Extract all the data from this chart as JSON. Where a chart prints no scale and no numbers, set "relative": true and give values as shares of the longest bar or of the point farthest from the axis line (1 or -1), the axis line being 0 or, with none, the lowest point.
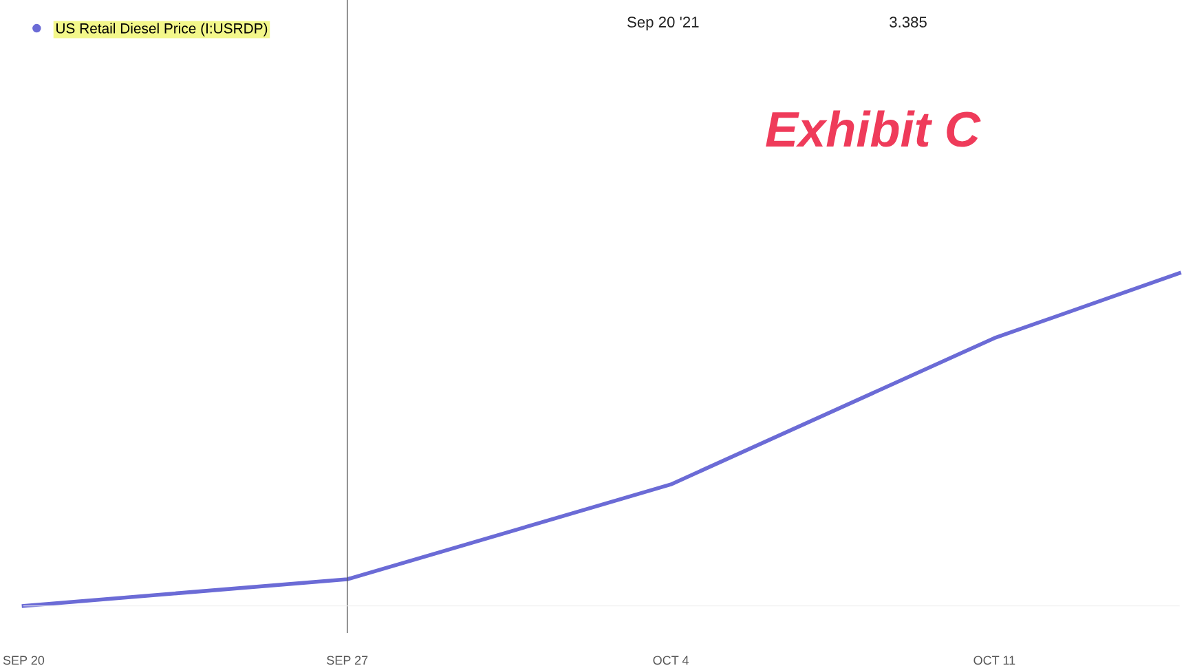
{
  "chart_data": {
    "type": "line",
    "relative": true,
    "x": [
      "2021-09-20",
      "2021-09-27",
      "2021-10-04",
      "2021-10-11",
      "2021-10-15"
    ],
    "series": [
      {
        "name": "US Retail Diesel Price (I:USRDP)",
        "color": "#6b6bd6",
        "values": [
          0,
          0.08,
          0.365,
          0.805,
          1
        ]
      }
    ],
    "xlim": [
      "2021-09-20",
      "2021-10-15"
    ],
    "xticks": [
      {
        "value": "2021-09-20",
        "label": "SEP 20"
      },
      {
        "value": "2021-09-27",
        "label": "SEP 27"
      },
      {
        "value": "2021-10-04",
        "label": "OCT 4"
      },
      {
        "value": "2021-10-11",
        "label": "OCT 11"
      }
    ],
    "ref_lines": [
      {
        "axis": "x",
        "value": "2021-09-27",
        "label": null,
        "color": "#555555"
      }
    ],
    "annotations": [
      "Sep 20 '21",
      "3.385",
      "Exhibit C"
    ],
    "legend": "top left",
    "grid": false,
    "marker": "none",
    "line_style": "solid"
  }
}
